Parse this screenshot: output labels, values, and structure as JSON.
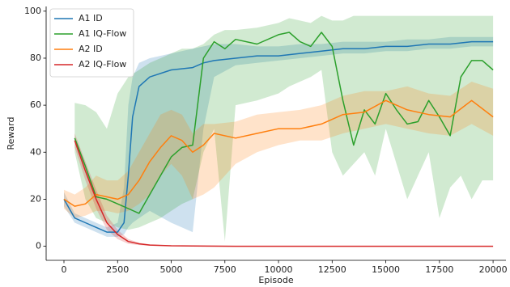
{
  "chart_data": {
    "type": "line",
    "x_label": "Episode",
    "y_label": "Reward",
    "xlim": [
      -830,
      20600
    ],
    "ylim": [
      -6,
      102
    ],
    "xticks": [
      0,
      2500,
      5000,
      7500,
      10000,
      12500,
      15000,
      17500,
      20000
    ],
    "yticks": [
      0,
      20,
      40,
      60,
      80,
      100
    ],
    "grid": false,
    "legend": "upper left",
    "series": [
      {
        "name": "A1 ID",
        "color": "#1f77b4",
        "x": [
          0,
          500,
          1000,
          1500,
          2000,
          2500,
          2800,
          3000,
          3200,
          3500,
          4000,
          5000,
          6000,
          6500,
          7000,
          8000,
          9000,
          10000,
          11000,
          12000,
          13000,
          14000,
          15000,
          16000,
          17000,
          18000,
          19000,
          20000
        ],
        "values": [
          20,
          12,
          10,
          8,
          6,
          6,
          10,
          30,
          55,
          68,
          72,
          75,
          76,
          78,
          79,
          80,
          81,
          81,
          82,
          83,
          84,
          84,
          85,
          85,
          86,
          86,
          87,
          87
        ],
        "lower": [
          17,
          10,
          8,
          6,
          4,
          4,
          5,
          8,
          10,
          12,
          15,
          10,
          6,
          50,
          72,
          77,
          78,
          79,
          80,
          81,
          82,
          82,
          83,
          83,
          84,
          84,
          85,
          85
        ],
        "upper": [
          23,
          14,
          12,
          10,
          8,
          10,
          25,
          60,
          72,
          78,
          80,
          82,
          84,
          85,
          86,
          86,
          85,
          85,
          86,
          86,
          87,
          87,
          87,
          88,
          88,
          89,
          89,
          89
        ]
      },
      {
        "name": "A1 IQ-Flow",
        "color": "#2ca02c",
        "x": [
          500,
          1000,
          1500,
          2000,
          2500,
          3000,
          3500,
          4000,
          4500,
          5000,
          5500,
          6000,
          6500,
          7000,
          7500,
          8000,
          9000,
          10000,
          10500,
          11000,
          11500,
          12000,
          12500,
          13000,
          13500,
          14000,
          14500,
          15000,
          15500,
          16000,
          16500,
          17000,
          17500,
          18000,
          18500,
          19000,
          19500,
          20000
        ],
        "values": [
          46,
          34,
          21,
          20,
          18,
          16,
          14,
          22,
          30,
          38,
          42,
          43,
          80,
          87,
          84,
          88,
          86,
          90,
          91,
          87,
          85,
          91,
          85,
          62,
          43,
          58,
          52,
          65,
          58,
          52,
          53,
          62,
          55,
          47,
          72,
          79,
          79,
          75
        ],
        "lower": [
          40,
          20,
          12,
          10,
          8,
          7,
          8,
          10,
          12,
          15,
          18,
          20,
          40,
          50,
          2,
          60,
          62,
          65,
          68,
          70,
          72,
          75,
          40,
          30,
          35,
          40,
          30,
          50,
          35,
          20,
          30,
          40,
          12,
          25,
          30,
          20,
          28,
          28
        ],
        "upper": [
          61,
          60,
          57,
          50,
          65,
          72,
          75,
          78,
          80,
          82,
          84,
          84,
          86,
          90,
          92,
          92,
          93,
          95,
          97,
          96,
          95,
          98,
          96,
          96,
          98,
          98,
          98,
          98,
          98,
          98,
          98,
          98,
          98,
          98,
          98,
          98,
          98,
          98
        ]
      },
      {
        "name": "A2 ID",
        "color": "#ff7f0e",
        "x": [
          0,
          500,
          1000,
          1500,
          2000,
          2500,
          3000,
          3500,
          4000,
          4500,
          5000,
          5500,
          6000,
          6500,
          7000,
          8000,
          9000,
          10000,
          11000,
          12000,
          13000,
          14000,
          15000,
          16000,
          17000,
          18000,
          19000,
          20000
        ],
        "values": [
          20,
          17,
          18,
          22,
          21,
          20,
          22,
          28,
          36,
          42,
          47,
          45,
          40,
          43,
          48,
          46,
          48,
          50,
          50,
          52,
          56,
          57,
          62,
          58,
          56,
          55,
          62,
          55
        ],
        "lower": [
          16,
          12,
          13,
          15,
          15,
          14,
          15,
          18,
          22,
          30,
          35,
          30,
          20,
          22,
          25,
          35,
          40,
          43,
          45,
          45,
          48,
          50,
          52,
          50,
          48,
          47,
          52,
          47
        ],
        "upper": [
          24,
          22,
          25,
          30,
          28,
          28,
          32,
          40,
          48,
          56,
          58,
          56,
          48,
          52,
          52,
          53,
          56,
          57,
          58,
          60,
          64,
          66,
          66,
          68,
          65,
          64,
          70,
          67
        ]
      },
      {
        "name": "A2 IQ-Flow",
        "color": "#d62728",
        "x": [
          500,
          1000,
          1500,
          2000,
          2500,
          3000,
          3500,
          4000,
          5000,
          6000,
          8000,
          10000,
          12000,
          14000,
          16000,
          18000,
          20000
        ],
        "values": [
          45,
          32,
          20,
          10,
          5,
          2,
          1,
          0.5,
          0.2,
          0.1,
          0,
          0,
          0,
          0,
          0,
          0,
          0
        ],
        "lower": [
          42,
          28,
          16,
          7,
          3,
          1,
          0.5,
          0.2,
          0.1,
          0,
          0,
          0,
          0,
          0,
          0,
          0,
          0
        ],
        "upper": [
          48,
          36,
          24,
          13,
          7,
          3,
          1.5,
          0.8,
          0.3,
          0.2,
          0,
          0,
          0,
          0,
          0,
          0,
          0
        ]
      }
    ]
  }
}
